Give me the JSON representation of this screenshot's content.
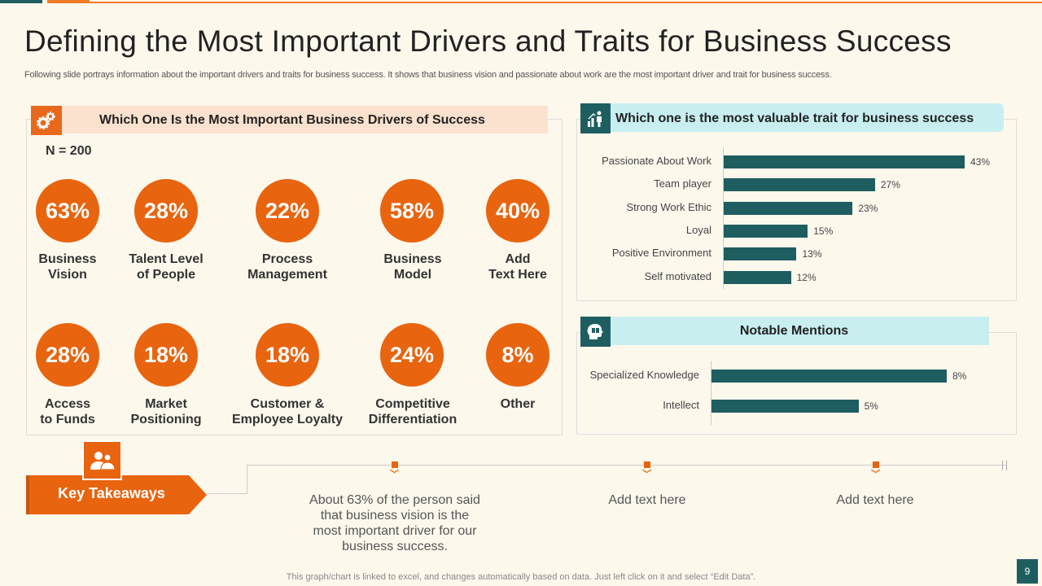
{
  "title": "Defining the Most Important Drivers and Traits for Business Success",
  "subtitle": "Following slide portrays information about the important drivers and traits for business success. It shows that business vision and passionate about work are the most important driver and trait for  business success.",
  "left_panel": {
    "heading": "Which One Is the Most Important Business Drivers of Success",
    "n_label": "N = 200",
    "items": [
      {
        "value": "63%",
        "label": "Business\nVision"
      },
      {
        "value": "28%",
        "label": "Talent Level\nof People"
      },
      {
        "value": "22%",
        "label": "Process\nManagement"
      },
      {
        "value": "58%",
        "label": "Business\nModel"
      },
      {
        "value": "40%",
        "label": "Add\nText Here"
      },
      {
        "value": "28%",
        "label": "Access\nto Funds"
      },
      {
        "value": "18%",
        "label": "Market\nPositioning"
      },
      {
        "value": "18%",
        "label": "Customer &\nEmployee Loyalty"
      },
      {
        "value": "24%",
        "label": "Competitive\nDifferentiation"
      },
      {
        "value": "8%",
        "label": "Other"
      }
    ]
  },
  "traits_chart": {
    "heading": "Which one is the most valuable trait for business success",
    "chart_data": {
      "type": "bar",
      "orientation": "horizontal",
      "categories": [
        "Passionate About Work",
        "Team player",
        "Strong Work Ethic",
        "Loyal",
        "Positive Environment",
        "Self motivated"
      ],
      "values": [
        43,
        27,
        23,
        15,
        13,
        12
      ],
      "value_labels": [
        "43%",
        "27%",
        "23%",
        "15%",
        "13%",
        "12%"
      ],
      "xlim": [
        0,
        43
      ]
    }
  },
  "mentions_chart": {
    "heading": "Notable Mentions",
    "chart_data": {
      "type": "bar",
      "orientation": "horizontal",
      "categories": [
        "Specialized Knowledge",
        "Intellect"
      ],
      "values": [
        8,
        5
      ],
      "value_labels": [
        "8%",
        "5%"
      ],
      "xlim": [
        0,
        8
      ]
    }
  },
  "takeaways": {
    "label": "Key Takeaways",
    "points": [
      "About 63% of the person said that business vision is the most important driver for our business success.",
      "Add text here",
      "Add text here"
    ]
  },
  "footer": "This graph/chart is linked to excel,  and changes automatically based on data. Just left click on it and select “Edit Data”.",
  "page_number": "9",
  "colors": {
    "orange": "#e8640f",
    "teal": "#1e5e60",
    "light_teal": "#c8eef0",
    "peach": "#fbe2cf"
  }
}
